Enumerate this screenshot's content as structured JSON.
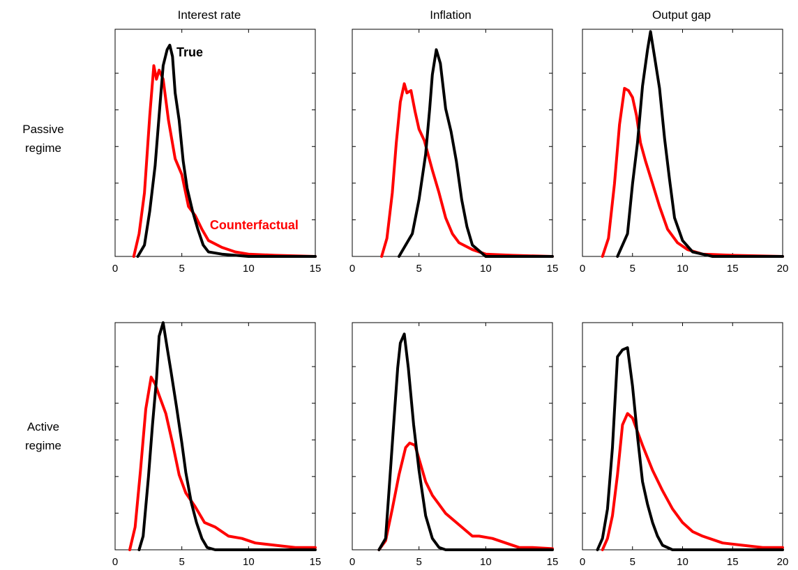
{
  "column_titles": [
    "Interest rate",
    "Inflation",
    "Output gap"
  ],
  "row_labels": [
    [
      "Passive",
      "regime"
    ],
    [
      "Active",
      "regime"
    ]
  ],
  "colors": {
    "true": "#000000",
    "counterfactual": "#ff0000"
  },
  "chart_data": [
    {
      "type": "line",
      "row": 0,
      "col": 0,
      "title": "Interest rate",
      "xlim": [
        0,
        15
      ],
      "xticks": [
        0,
        5,
        10,
        15
      ],
      "ylim": [
        0,
        1
      ],
      "annotations": [
        {
          "text": "True",
          "series": "True",
          "x": 4.6,
          "y": 0.88
        },
        {
          "text": "Counterfactual",
          "series": "Counterfactual",
          "x": 7.1,
          "y": 0.12
        }
      ],
      "series": [
        {
          "name": "True",
          "x": [
            1.7,
            2.2,
            2.6,
            3.0,
            3.3,
            3.6,
            3.9,
            4.1,
            4.3,
            4.5,
            4.8,
            5.1,
            5.4,
            5.8,
            6.2,
            6.6,
            7.0,
            8.0,
            10.0,
            15.0
          ],
          "y": [
            0,
            0.05,
            0.2,
            0.4,
            0.62,
            0.84,
            0.91,
            0.93,
            0.88,
            0.72,
            0.6,
            0.42,
            0.3,
            0.2,
            0.12,
            0.05,
            0.02,
            0.01,
            0,
            0
          ]
        },
        {
          "name": "Counterfactual",
          "x": [
            1.4,
            1.8,
            2.2,
            2.6,
            2.9,
            3.1,
            3.3,
            3.6,
            4.0,
            4.5,
            5.0,
            5.5,
            6.0,
            6.5,
            7.0,
            8.0,
            9.0,
            10.0,
            12.0,
            15.0
          ],
          "y": [
            0,
            0.1,
            0.28,
            0.62,
            0.84,
            0.78,
            0.82,
            0.78,
            0.6,
            0.43,
            0.36,
            0.22,
            0.18,
            0.12,
            0.07,
            0.04,
            0.02,
            0.01,
            0.005,
            0
          ]
        }
      ]
    },
    {
      "type": "line",
      "row": 0,
      "col": 1,
      "title": "Inflation",
      "xlim": [
        0,
        15
      ],
      "xticks": [
        0,
        5,
        10,
        15
      ],
      "ylim": [
        0,
        1
      ],
      "series": [
        {
          "name": "True",
          "x": [
            3.5,
            4.5,
            5.0,
            5.5,
            5.8,
            6.0,
            6.3,
            6.6,
            7.0,
            7.4,
            7.8,
            8.2,
            8.6,
            9.0,
            10.0,
            15.0
          ],
          "y": [
            0,
            0.1,
            0.25,
            0.45,
            0.65,
            0.8,
            0.91,
            0.85,
            0.65,
            0.55,
            0.42,
            0.25,
            0.13,
            0.05,
            0,
            0
          ]
        },
        {
          "name": "Counterfactual",
          "x": [
            2.2,
            2.6,
            3.0,
            3.3,
            3.6,
            3.9,
            4.1,
            4.4,
            4.7,
            5.0,
            5.4,
            6.0,
            6.5,
            7.0,
            7.5,
            8.0,
            9.0,
            10.0,
            12.0,
            15.0
          ],
          "y": [
            0,
            0.08,
            0.28,
            0.5,
            0.68,
            0.76,
            0.72,
            0.73,
            0.64,
            0.56,
            0.51,
            0.38,
            0.28,
            0.17,
            0.1,
            0.06,
            0.03,
            0.01,
            0.005,
            0
          ]
        }
      ]
    },
    {
      "type": "line",
      "row": 0,
      "col": 2,
      "title": "Output gap",
      "xlim": [
        0,
        20
      ],
      "xticks": [
        0,
        5,
        10,
        15,
        20
      ],
      "ylim": [
        0,
        1
      ],
      "series": [
        {
          "name": "True",
          "x": [
            3.5,
            4.5,
            5.0,
            5.5,
            6.0,
            6.5,
            6.8,
            7.2,
            7.7,
            8.2,
            8.7,
            9.2,
            10.0,
            11.0,
            13.0,
            20.0
          ],
          "y": [
            0,
            0.1,
            0.32,
            0.5,
            0.75,
            0.91,
            0.99,
            0.88,
            0.74,
            0.52,
            0.34,
            0.17,
            0.07,
            0.02,
            0,
            0
          ]
        },
        {
          "name": "Counterfactual",
          "x": [
            2.0,
            2.6,
            3.2,
            3.7,
            4.2,
            4.6,
            5.0,
            5.4,
            5.8,
            6.3,
            7.0,
            7.7,
            8.5,
            9.5,
            10.5,
            12.0,
            15.0,
            20.0
          ],
          "y": [
            0,
            0.08,
            0.32,
            0.58,
            0.74,
            0.73,
            0.7,
            0.62,
            0.5,
            0.42,
            0.32,
            0.22,
            0.12,
            0.06,
            0.03,
            0.01,
            0.005,
            0
          ]
        }
      ]
    },
    {
      "type": "line",
      "row": 1,
      "col": 0,
      "title": "",
      "xlim": [
        0,
        15
      ],
      "xticks": [
        0,
        5,
        10,
        15
      ],
      "ylim": [
        0,
        1
      ],
      "series": [
        {
          "name": "True",
          "x": [
            1.8,
            2.1,
            2.5,
            2.8,
            3.1,
            3.3,
            3.6,
            3.9,
            4.2,
            4.6,
            5.0,
            5.3,
            5.7,
            6.1,
            6.5,
            6.9,
            7.5,
            15.0
          ],
          "y": [
            0,
            0.06,
            0.32,
            0.55,
            0.75,
            0.94,
            1.0,
            0.89,
            0.78,
            0.63,
            0.47,
            0.34,
            0.21,
            0.12,
            0.05,
            0.01,
            0,
            0
          ]
        },
        {
          "name": "Counterfactual",
          "x": [
            1.1,
            1.5,
            1.9,
            2.3,
            2.7,
            3.0,
            3.3,
            3.8,
            4.3,
            4.8,
            5.3,
            6.0,
            6.7,
            7.5,
            8.5,
            9.5,
            10.5,
            12.0,
            13.5,
            15.0
          ],
          "y": [
            0,
            0.1,
            0.35,
            0.62,
            0.76,
            0.73,
            0.68,
            0.6,
            0.47,
            0.33,
            0.25,
            0.19,
            0.12,
            0.1,
            0.06,
            0.05,
            0.03,
            0.02,
            0.01,
            0.01
          ]
        }
      ]
    },
    {
      "type": "line",
      "row": 1,
      "col": 1,
      "title": "",
      "xlim": [
        0,
        15
      ],
      "xticks": [
        0,
        5,
        10,
        15
      ],
      "ylim": [
        0,
        1
      ],
      "series": [
        {
          "name": "True",
          "x": [
            2.0,
            2.5,
            2.8,
            3.1,
            3.4,
            3.6,
            3.9,
            4.2,
            4.6,
            5.0,
            5.5,
            6.0,
            6.5,
            7.0,
            8.0,
            15.0
          ],
          "y": [
            0,
            0.05,
            0.3,
            0.55,
            0.8,
            0.91,
            0.95,
            0.8,
            0.55,
            0.35,
            0.15,
            0.05,
            0.01,
            0,
            0,
            0
          ]
        },
        {
          "name": "Counterfactual",
          "x": [
            2.0,
            2.5,
            3.0,
            3.5,
            4.0,
            4.3,
            4.7,
            5.0,
            5.5,
            6.0,
            6.5,
            7.0,
            8.0,
            9.0,
            9.5,
            10.5,
            11.5,
            12.5,
            13.5,
            15.0
          ],
          "y": [
            0,
            0.04,
            0.18,
            0.33,
            0.45,
            0.47,
            0.46,
            0.4,
            0.3,
            0.24,
            0.2,
            0.16,
            0.11,
            0.06,
            0.06,
            0.05,
            0.03,
            0.01,
            0.01,
            0.005
          ]
        }
      ]
    },
    {
      "type": "line",
      "row": 1,
      "col": 2,
      "title": "",
      "xlim": [
        0,
        20
      ],
      "xticks": [
        0,
        5,
        10,
        15,
        20
      ],
      "ylim": [
        0,
        1
      ],
      "series": [
        {
          "name": "True",
          "x": [
            1.5,
            2.0,
            2.5,
            3.0,
            3.5,
            4.0,
            4.5,
            5.0,
            5.5,
            6.0,
            6.5,
            7.0,
            7.5,
            8.0,
            9.0,
            20.0
          ],
          "y": [
            0,
            0.05,
            0.18,
            0.45,
            0.85,
            0.88,
            0.89,
            0.72,
            0.5,
            0.3,
            0.2,
            0.12,
            0.06,
            0.02,
            0,
            0
          ]
        },
        {
          "name": "Counterfactual",
          "x": [
            2.0,
            2.5,
            3.0,
            3.5,
            4.0,
            4.5,
            5.0,
            5.5,
            6.0,
            7.0,
            8.0,
            9.0,
            10.0,
            11.0,
            12.0,
            14.0,
            16.0,
            18.0,
            20.0
          ],
          "y": [
            0,
            0.05,
            0.15,
            0.33,
            0.55,
            0.6,
            0.58,
            0.52,
            0.46,
            0.35,
            0.26,
            0.18,
            0.12,
            0.08,
            0.06,
            0.03,
            0.02,
            0.01,
            0.01
          ]
        }
      ]
    }
  ]
}
